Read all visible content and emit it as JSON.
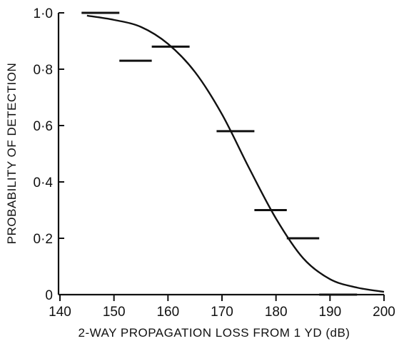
{
  "chart_data": {
    "type": "scatter",
    "title": "",
    "xlabel": "2-WAY PROPAGATION LOSS FROM 1 YD (dB)",
    "ylabel": "PROBABILITY OF DETECTION",
    "xlim": [
      140,
      200
    ],
    "ylim": [
      0,
      1.0
    ],
    "x_ticks": [
      140,
      150,
      160,
      170,
      180,
      190,
      200
    ],
    "x_tick_labels": [
      "140",
      "150",
      "160",
      "170",
      "180",
      "190",
      "200"
    ],
    "y_ticks": [
      0,
      0.2,
      0.4,
      0.6,
      0.8,
      1.0
    ],
    "y_tick_labels": [
      "0",
      "0·2",
      "0·4",
      "0·6",
      "0·8",
      "1·0"
    ],
    "grid": false,
    "series": [
      {
        "marker": "horizontal-bar",
        "points": [
          {
            "x_start": 144,
            "x_end": 151,
            "y": 1.0
          },
          {
            "x_start": 151,
            "x_end": 157,
            "y": 0.83
          },
          {
            "x_start": 157,
            "x_end": 164,
            "y": 0.88
          },
          {
            "x_start": 169,
            "x_end": 176,
            "y": 0.58
          },
          {
            "x_start": 176,
            "x_end": 182,
            "y": 0.3
          },
          {
            "x_start": 182,
            "x_end": 188,
            "y": 0.2
          },
          {
            "x_start": 188,
            "x_end": 195,
            "y": 0.0
          }
        ]
      },
      {
        "marker": "line",
        "curve": "smooth-logistic",
        "points": [
          {
            "x": 145,
            "y": 0.99
          },
          {
            "x": 150,
            "y": 0.975
          },
          {
            "x": 155,
            "y": 0.95
          },
          {
            "x": 160,
            "y": 0.89
          },
          {
            "x": 165,
            "y": 0.79
          },
          {
            "x": 170,
            "y": 0.64
          },
          {
            "x": 175,
            "y": 0.45
          },
          {
            "x": 180,
            "y": 0.27
          },
          {
            "x": 185,
            "y": 0.13
          },
          {
            "x": 190,
            "y": 0.055
          },
          {
            "x": 195,
            "y": 0.025
          },
          {
            "x": 200,
            "y": 0.01
          }
        ]
      }
    ]
  }
}
